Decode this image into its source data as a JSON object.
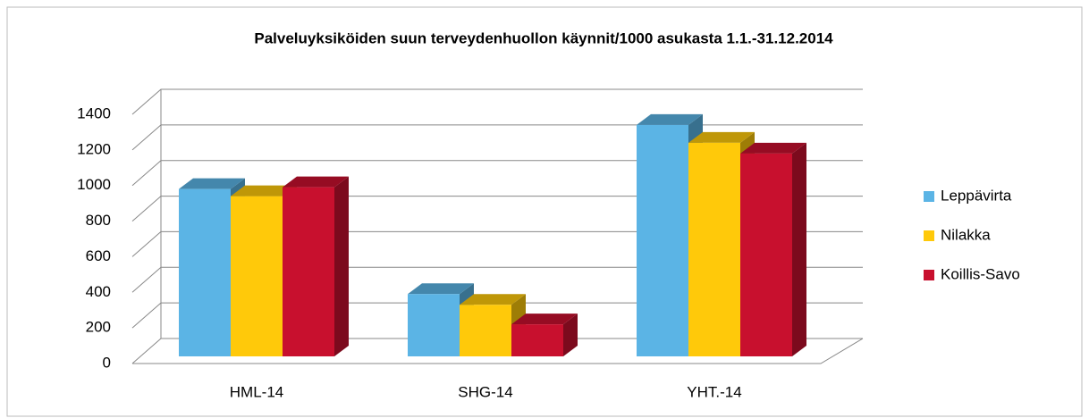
{
  "chart_data": {
    "type": "bar3d",
    "title": "Palveluyksiköiden suun terveydenhuollon käynnit/1000 asukasta 1.1.-31.12.2014",
    "categories": [
      "HML-14",
      "SHG-14",
      "YHT.-14"
    ],
    "series": [
      {
        "name": "Leppävirta",
        "color": "#5bb4e5",
        "values": [
          940,
          350,
          1300
        ]
      },
      {
        "name": "Nilakka",
        "color": "#ffc90a",
        "values": [
          900,
          290,
          1200
        ]
      },
      {
        "name": "Koillis-Savo",
        "color": "#c8102e",
        "values": [
          950,
          180,
          1140
        ]
      }
    ],
    "ylim": [
      0,
      1400
    ],
    "yticks": [
      0,
      200,
      400,
      600,
      800,
      1000,
      1200,
      1400
    ],
    "grid": true,
    "legend": "right"
  }
}
